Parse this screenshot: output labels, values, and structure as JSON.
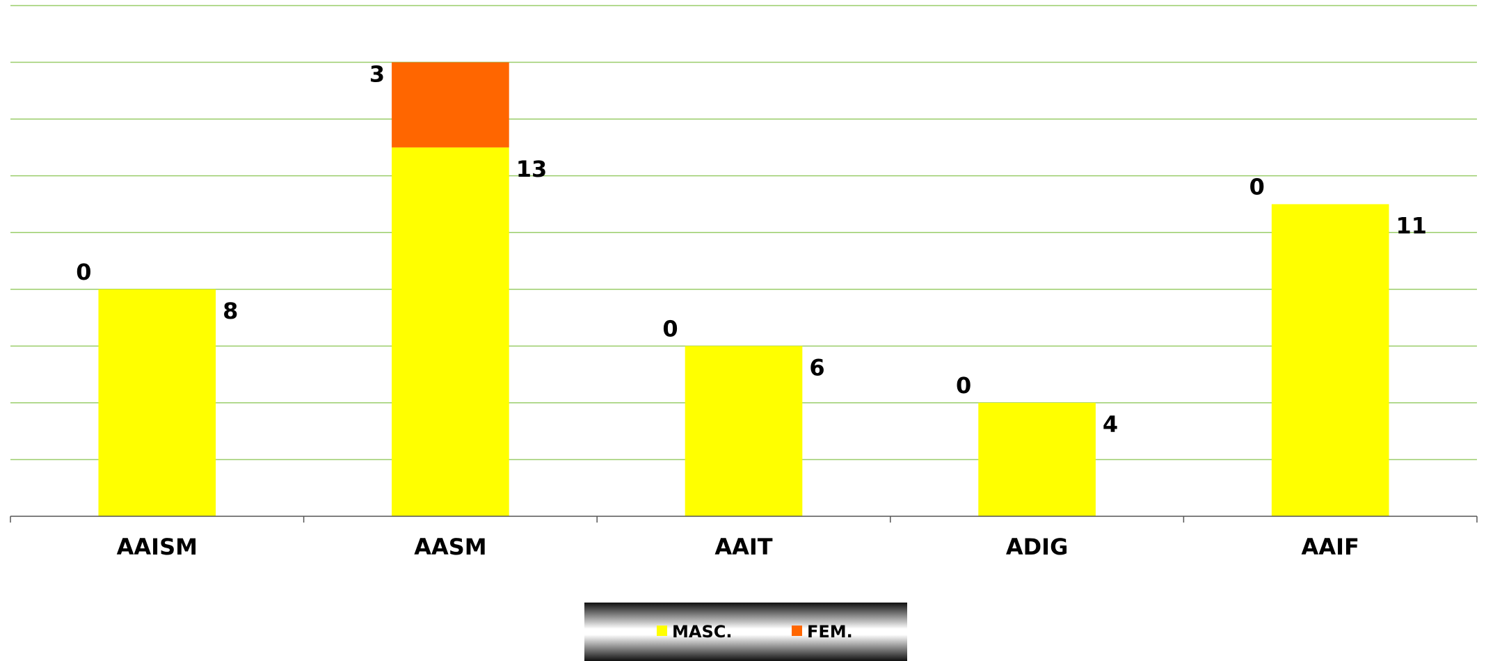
{
  "chart_data": {
    "type": "bar",
    "stacked": true,
    "categories": [
      "AAISM",
      "AASM",
      "AAIT",
      "ADIG",
      "AAIF"
    ],
    "series": [
      {
        "name": "MASC.",
        "values": [
          8,
          13,
          6,
          4,
          11
        ],
        "color": "#FFFF00"
      },
      {
        "name": "FEM.",
        "values": [
          0,
          3,
          0,
          0,
          0
        ],
        "color": "#FF6600"
      }
    ],
    "ylim": [
      0,
      18
    ],
    "grid": true,
    "grid_color": "#9ACD6A",
    "legend_position": "bottom",
    "title": "",
    "xlabel": "",
    "ylabel": ""
  }
}
